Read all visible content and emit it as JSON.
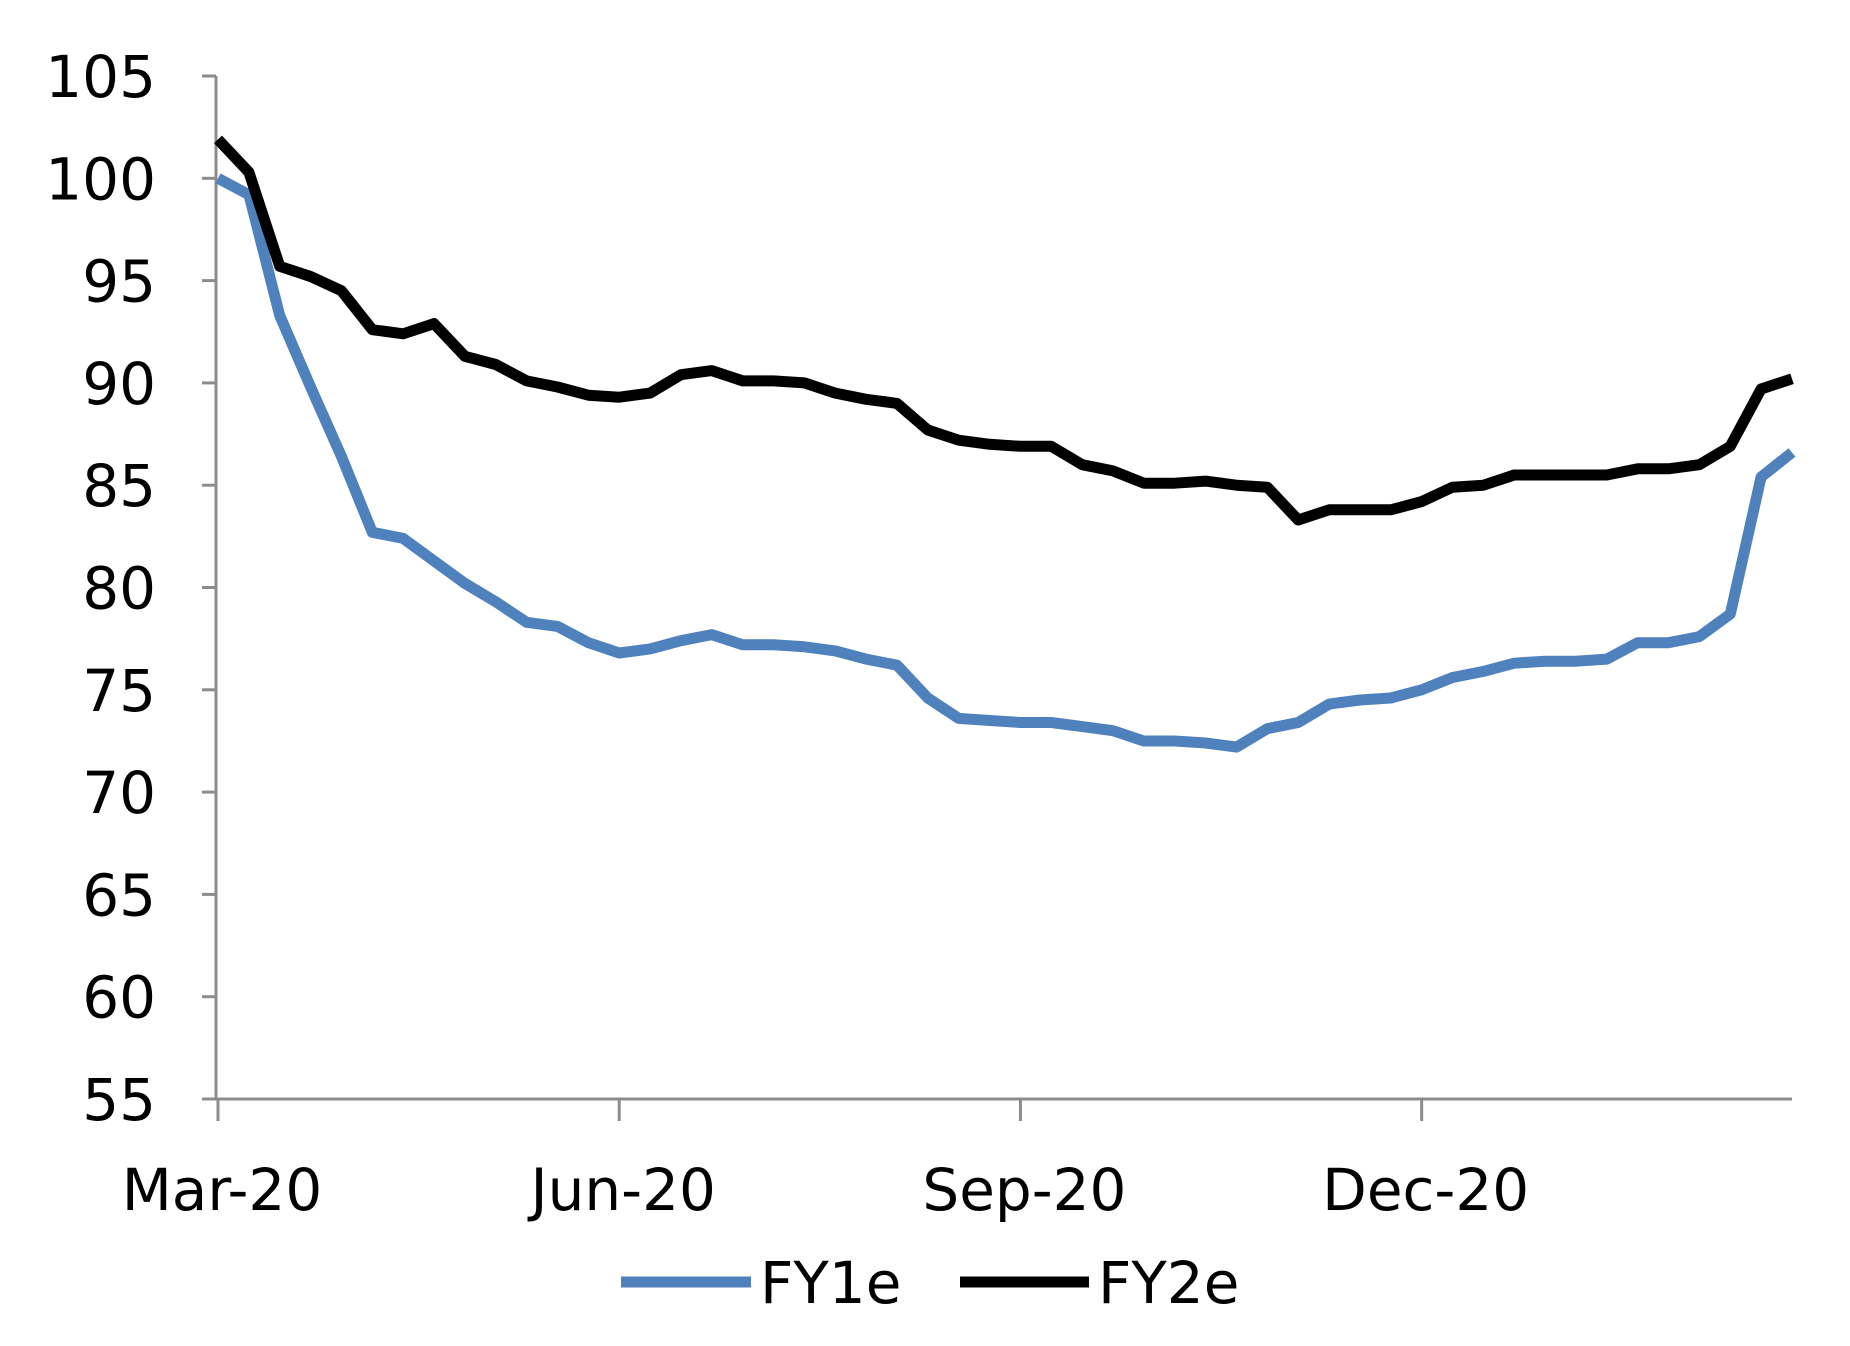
{
  "chart_data": {
    "type": "line",
    "title": "",
    "xlabel": "",
    "ylabel": "",
    "ylim": [
      55,
      105
    ],
    "yticks": [
      55,
      60,
      65,
      70,
      75,
      80,
      85,
      90,
      95,
      100,
      105
    ],
    "x_index_range": [
      0,
      51
    ],
    "xticks": [
      {
        "label": "Mar-20",
        "index": 0
      },
      {
        "label": "Jun-20",
        "index": 13
      },
      {
        "label": "Sep-20",
        "index": 26
      },
      {
        "label": "Dec-20",
        "index": 39
      }
    ],
    "legend_position": "bottom",
    "series": [
      {
        "name": "FY1e",
        "color": "#4f81bd",
        "values": [
          100.0,
          99.2,
          93.3,
          89.8,
          86.4,
          82.7,
          82.4,
          81.3,
          80.2,
          79.3,
          78.3,
          78.1,
          77.3,
          76.8,
          77.0,
          77.4,
          77.7,
          77.2,
          77.2,
          77.1,
          76.9,
          76.5,
          76.2,
          74.6,
          73.6,
          73.5,
          73.4,
          73.4,
          73.2,
          73.0,
          72.5,
          72.5,
          72.4,
          72.2,
          73.1,
          73.4,
          74.3,
          74.5,
          74.6,
          75.0,
          75.6,
          75.9,
          76.3,
          76.4,
          76.4,
          76.5,
          77.3,
          77.3,
          77.6,
          78.7,
          85.4,
          86.6
        ]
      },
      {
        "name": "FY2e",
        "color": "#000000",
        "values": [
          101.9,
          100.3,
          95.7,
          95.2,
          94.5,
          92.6,
          92.4,
          92.9,
          91.3,
          90.9,
          90.1,
          89.8,
          89.4,
          89.3,
          89.5,
          90.4,
          90.6,
          90.1,
          90.1,
          90.0,
          89.5,
          89.2,
          89.0,
          87.7,
          87.2,
          87.0,
          86.9,
          86.9,
          86.0,
          85.7,
          85.1,
          85.1,
          85.2,
          85.0,
          84.9,
          83.3,
          83.8,
          83.8,
          83.8,
          84.2,
          84.9,
          85.0,
          85.5,
          85.5,
          85.5,
          85.5,
          85.8,
          85.8,
          86.0,
          86.9,
          89.7,
          90.2
        ]
      }
    ]
  }
}
